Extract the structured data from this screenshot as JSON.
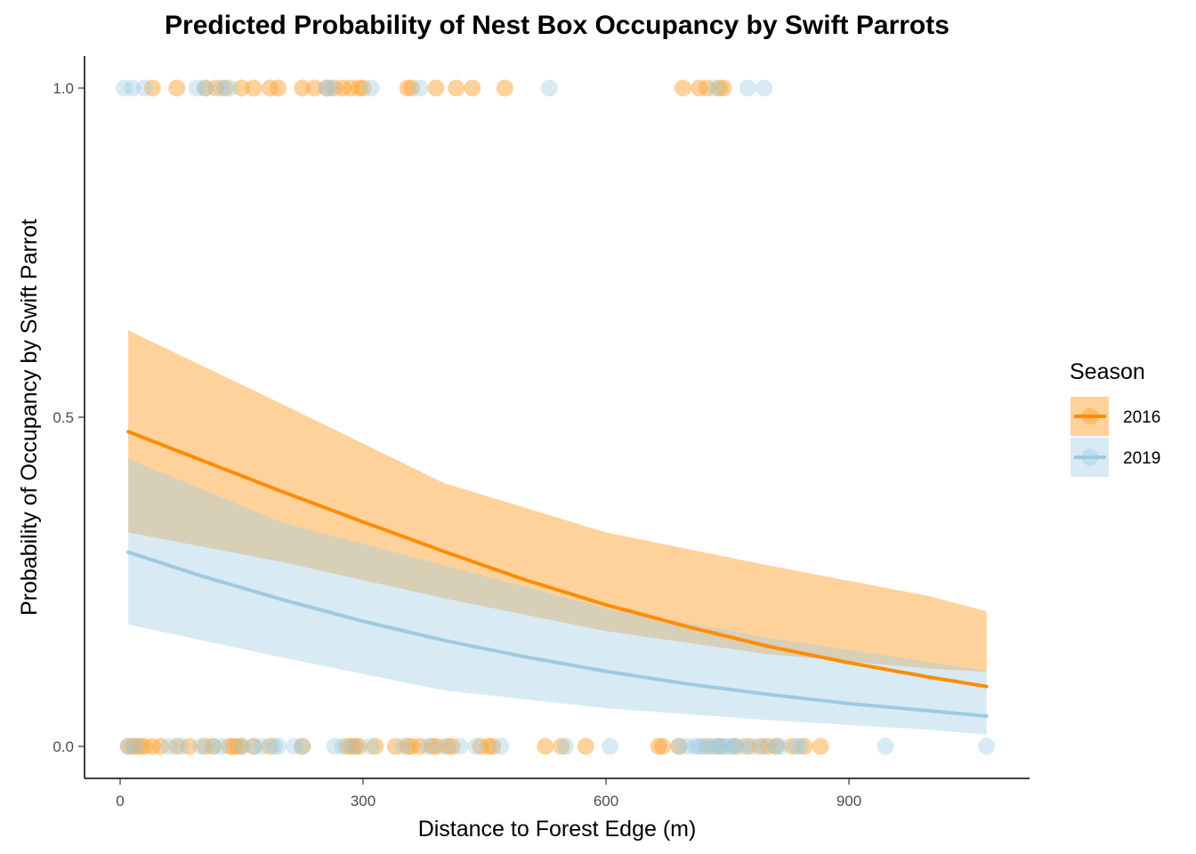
{
  "chart_data": {
    "type": "scatter",
    "title": "Predicted Probability of Nest Box Occupancy by Swift Parrots",
    "xlabel": "Distance to Forest Edge (m)",
    "ylabel": "Probability of Occupancy by Swift Parrot",
    "xlim": [
      -40,
      1120
    ],
    "ylim": [
      -0.05,
      1.05
    ],
    "x_ticks": [
      0,
      300,
      600,
      900
    ],
    "x_tick_labels": [
      "0",
      "300",
      "600",
      "900"
    ],
    "y_ticks": [
      0,
      0.5,
      1
    ],
    "y_tick_labels": [
      "0.0",
      "0.5",
      "1.0"
    ],
    "grid": false,
    "legend": {
      "title": "Season",
      "position": "right",
      "entries": [
        "2016",
        "2019"
      ]
    },
    "colors": {
      "2016": "#ff8c00",
      "2019": "#9ecae1"
    },
    "series": [
      {
        "name": "2016",
        "fitted_curve": {
          "x": [
            10,
            100,
            200,
            300,
            400,
            500,
            600,
            700,
            800,
            900,
            1000,
            1070
          ],
          "y": [
            0.478,
            0.435,
            0.387,
            0.341,
            0.296,
            0.253,
            0.215,
            0.182,
            0.152,
            0.127,
            0.105,
            0.091
          ]
        },
        "ci_band": {
          "x": [
            10,
            200,
            400,
            600,
            800,
            1000,
            1070
          ],
          "lower": [
            0.325,
            0.28,
            0.225,
            0.175,
            0.14,
            0.118,
            0.113
          ],
          "upper": [
            0.632,
            0.52,
            0.4,
            0.325,
            0.275,
            0.228,
            0.205
          ]
        },
        "points_y1": [
          40,
          70,
          105,
          118,
          130,
          150,
          165,
          185,
          195,
          225,
          240,
          255,
          265,
          275,
          285,
          295,
          300,
          355,
          360,
          390,
          415,
          435,
          475,
          695,
          715,
          725,
          740,
          745
        ],
        "points_y0": [
          10,
          15,
          20,
          25,
          30,
          40,
          50,
          70,
          85,
          105,
          115,
          135,
          140,
          145,
          150,
          165,
          185,
          225,
          280,
          285,
          290,
          295,
          315,
          340,
          355,
          360,
          370,
          385,
          390,
          405,
          410,
          445,
          455,
          460,
          525,
          545,
          575,
          665,
          670,
          690,
          725,
          740,
          760,
          775,
          790,
          800,
          810,
          830,
          845,
          865
        ]
      },
      {
        "name": "2019",
        "fitted_curve": {
          "x": [
            10,
            100,
            200,
            300,
            400,
            500,
            600,
            700,
            800,
            900,
            1000,
            1070
          ],
          "y": [
            0.295,
            0.259,
            0.223,
            0.19,
            0.161,
            0.136,
            0.114,
            0.095,
            0.079,
            0.065,
            0.054,
            0.046
          ]
        },
        "ci_band": {
          "x": [
            10,
            200,
            400,
            600,
            800,
            1000,
            1070
          ],
          "lower": [
            0.185,
            0.135,
            0.085,
            0.058,
            0.04,
            0.025,
            0.018
          ],
          "upper": [
            0.437,
            0.34,
            0.275,
            0.21,
            0.165,
            0.128,
            0.115
          ]
        },
        "points_y1": [
          5,
          15,
          30,
          95,
          105,
          125,
          135,
          255,
          260,
          310,
          370,
          530,
          735,
          775,
          795
        ],
        "points_y0": [
          10,
          20,
          60,
          75,
          100,
          115,
          125,
          150,
          165,
          175,
          190,
          195,
          215,
          225,
          265,
          275,
          290,
          310,
          350,
          380,
          400,
          420,
          440,
          470,
          550,
          605,
          690,
          700,
          710,
          715,
          720,
          730,
          735,
          740,
          745,
          750,
          755,
          760,
          770,
          780,
          795,
          810,
          815,
          835,
          840,
          945,
          1070
        ]
      }
    ]
  }
}
